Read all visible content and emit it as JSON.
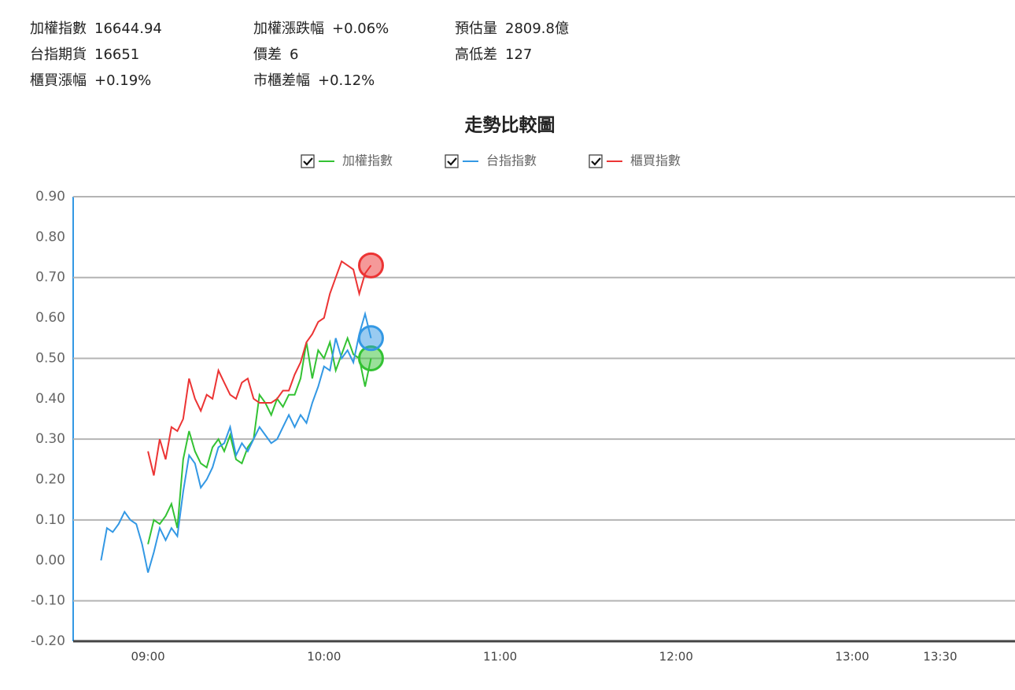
{
  "info": [
    [
      {
        "label": "加權指數",
        "value": "16644.94",
        "color": "#e62e2e"
      },
      {
        "label": "加權漲跌幅",
        "value": "+0.06%",
        "color": "#e62e2e"
      },
      {
        "label": "預估量",
        "value": "2809.8億",
        "color": "#1f9a1f"
      }
    ],
    [
      {
        "label": "台指期貨",
        "value": "16651",
        "color": "#e62e2e"
      },
      {
        "label": "價差",
        "value": "6",
        "color": "#e62e2e"
      },
      {
        "label": "高低差",
        "value": "127",
        "color": "#e62e2e"
      }
    ],
    [
      {
        "label": "櫃買漲幅",
        "value": "+0.19%",
        "color": "#e62e2e"
      },
      {
        "label": "市櫃差幅",
        "value": "+0.12%",
        "color": "#e62e2e"
      }
    ]
  ],
  "chart_data": {
    "type": "line",
    "title": "走勢比較圖",
    "x": [
      524,
      526,
      528,
      530,
      532,
      534,
      536,
      538,
      540,
      542,
      544,
      546,
      548,
      550,
      552,
      554,
      556,
      558,
      560,
      562,
      564,
      566,
      568,
      570,
      572,
      574,
      576,
      578,
      580,
      582,
      584,
      586,
      588,
      590,
      592,
      594,
      596,
      598,
      600,
      602,
      604,
      606,
      608,
      610,
      612,
      614,
      616
    ],
    "series": [
      {
        "name": "加權指數",
        "color": "#33c233",
        "values": [
          null,
          null,
          null,
          null,
          null,
          null,
          null,
          null,
          0.04,
          0.1,
          0.09,
          0.11,
          0.14,
          0.08,
          0.25,
          0.32,
          0.27,
          0.24,
          0.23,
          0.28,
          0.3,
          0.27,
          0.31,
          0.25,
          0.24,
          0.28,
          0.3,
          0.41,
          0.39,
          0.36,
          0.4,
          0.38,
          0.41,
          0.41,
          0.45,
          0.54,
          0.45,
          0.52,
          0.5,
          0.54,
          0.47,
          0.51,
          0.55,
          0.51,
          0.5,
          0.43,
          0.5
        ]
      },
      {
        "name": "台指指數",
        "color": "#3398e4",
        "values": [
          0.0,
          0.08,
          0.07,
          0.09,
          0.12,
          0.1,
          0.09,
          0.04,
          -0.03,
          0.02,
          0.08,
          0.05,
          0.08,
          0.06,
          0.17,
          0.26,
          0.24,
          0.18,
          0.2,
          0.23,
          0.28,
          0.29,
          0.33,
          0.26,
          0.29,
          0.27,
          0.3,
          0.33,
          0.31,
          0.29,
          0.3,
          0.33,
          0.36,
          0.33,
          0.36,
          0.34,
          0.39,
          0.43,
          0.48,
          0.47,
          0.55,
          0.5,
          0.52,
          0.49,
          0.56,
          0.61,
          0.55
        ]
      },
      {
        "name": "櫃買指數",
        "color": "#ec3434",
        "values": [
          null,
          null,
          null,
          null,
          null,
          null,
          null,
          null,
          0.27,
          0.21,
          0.3,
          0.25,
          0.33,
          0.32,
          0.35,
          0.45,
          0.4,
          0.37,
          0.41,
          0.4,
          0.47,
          0.44,
          0.41,
          0.4,
          0.44,
          0.45,
          0.4,
          0.39,
          0.39,
          0.39,
          0.4,
          0.42,
          0.42,
          0.46,
          0.49,
          0.54,
          0.56,
          0.59,
          0.6,
          0.66,
          0.7,
          0.74,
          0.73,
          0.72,
          0.66,
          0.71,
          0.73
        ]
      }
    ],
    "xlim": [
      514.5,
      835.5
    ],
    "xticks": [
      {
        "value": 540,
        "label": "09:00"
      },
      {
        "value": 600,
        "label": "10:00"
      },
      {
        "value": 660,
        "label": "11:00"
      },
      {
        "value": 720,
        "label": "12:00"
      },
      {
        "value": 780,
        "label": "13:00"
      },
      {
        "value": 810,
        "label": "13:30"
      }
    ],
    "ylim": [
      -0.2,
      0.9
    ],
    "yticks": [
      {
        "value": -0.2,
        "label": "-0.20"
      },
      {
        "value": -0.1,
        "label": "-0.10"
      },
      {
        "value": 0,
        "label": "0.00"
      },
      {
        "value": 0.1,
        "label": "0.10"
      },
      {
        "value": 0.2,
        "label": "0.20"
      },
      {
        "value": 0.3,
        "label": "0.30"
      },
      {
        "value": 0.4,
        "label": "0.40"
      },
      {
        "value": 0.5,
        "label": "0.50"
      },
      {
        "value": 0.6,
        "label": "0.60"
      },
      {
        "value": 0.7,
        "label": "0.70"
      },
      {
        "value": 0.8,
        "label": "0.80"
      },
      {
        "value": 0.9,
        "label": "0.90"
      }
    ],
    "grid": true
  }
}
